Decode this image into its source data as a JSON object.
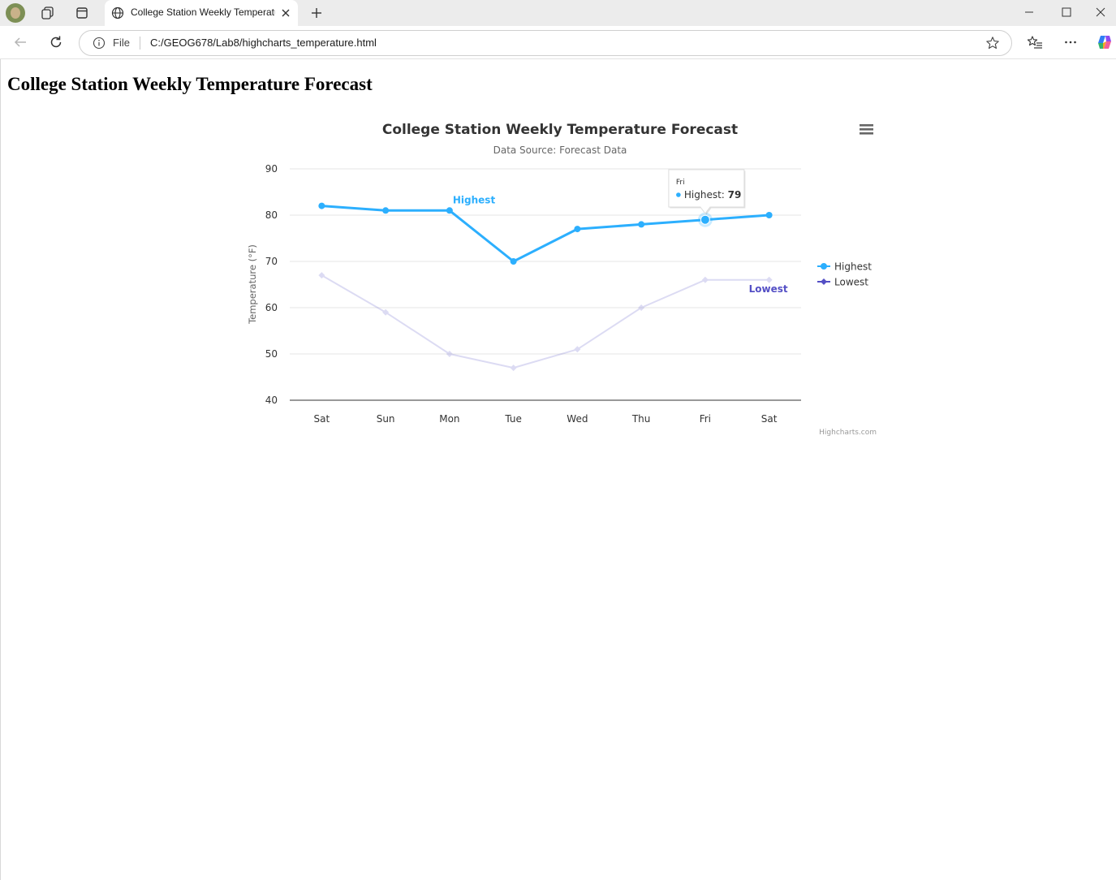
{
  "browser": {
    "tab_title": "College Station Weekly Temperature Forecast",
    "address_label": "File",
    "url": "C:/GEOG678/Lab8/highcharts_temperature.html"
  },
  "page": {
    "heading": "College Station Weekly Temperature Forecast"
  },
  "chart_data": {
    "type": "line",
    "title": "College Station Weekly Temperature Forecast",
    "subtitle": "Data Source: Forecast Data",
    "ylabel": "Temperature (°F)",
    "xlabel": "",
    "categories": [
      "Sat",
      "Sun",
      "Mon",
      "Tue",
      "Wed",
      "Thu",
      "Fri",
      "Sat"
    ],
    "ylim": [
      40,
      90
    ],
    "yticks": [
      40,
      50,
      60,
      70,
      80,
      90
    ],
    "grid": true,
    "legend_position": "right",
    "series": [
      {
        "name": "Highest",
        "color": "#2caffe",
        "values": [
          82,
          81,
          81,
          70,
          77,
          78,
          79,
          80
        ],
        "label": "Highest"
      },
      {
        "name": "Lowest",
        "color": "#544fc5",
        "values": [
          67,
          59,
          50,
          47,
          51,
          60,
          66,
          66
        ],
        "label": "Lowest"
      }
    ],
    "tooltip": {
      "header": "Fri",
      "series": "Highest",
      "value": "79",
      "separator": ": "
    },
    "credits": "Highcharts.com"
  }
}
